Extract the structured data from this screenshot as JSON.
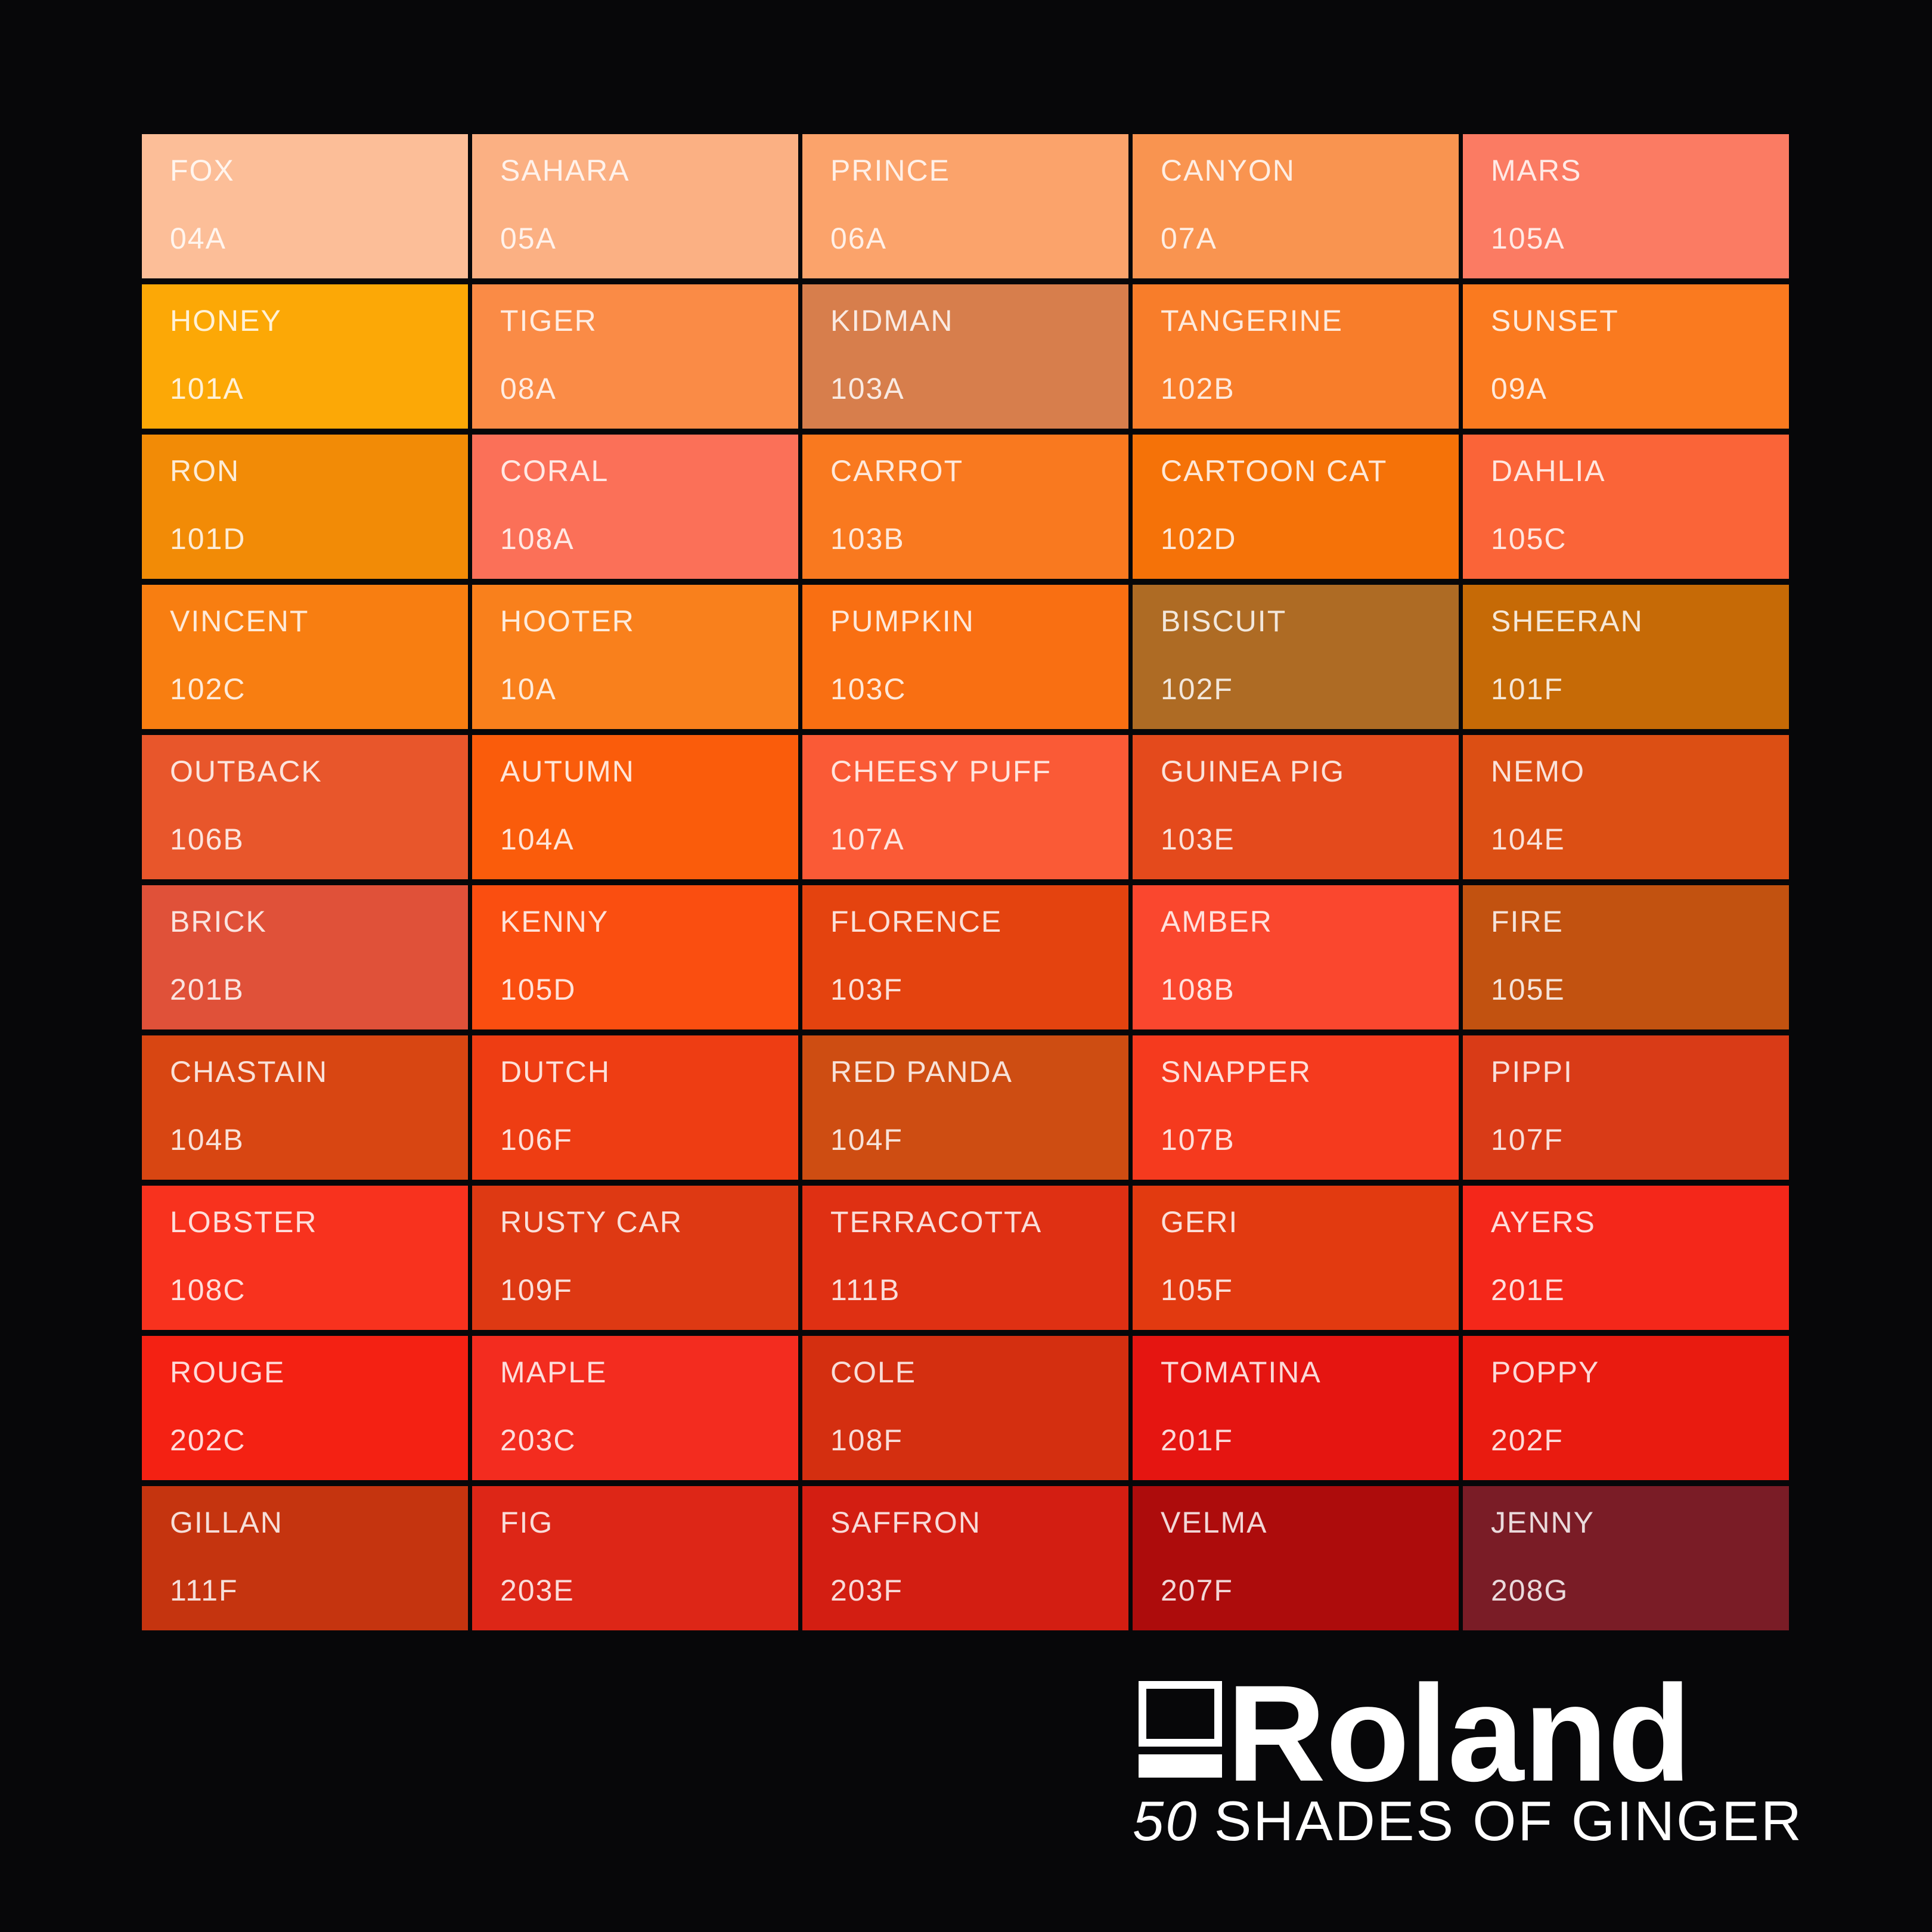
{
  "background": "#070709",
  "text_overlay_color": "rgba(255,255,255,0.84)",
  "footer": {
    "brand": "Roland",
    "tagline_number": "50",
    "tagline_text": "SHADES OF GINGER"
  },
  "chart_data": {
    "type": "table",
    "title": "50 SHADES OF GINGER",
    "description": "Color swatch palette grid of 50 orange/ginger shades, 5 columns by 10 rows, each swatch labeled with a name and a color code",
    "columns": 5,
    "rows": 10,
    "swatches": [
      {
        "name": "FOX",
        "code": "04A",
        "color": "#FCBE98"
      },
      {
        "name": "SAHARA",
        "code": "05A",
        "color": "#FBB083"
      },
      {
        "name": "PRINCE",
        "code": "06A",
        "color": "#FBA36B"
      },
      {
        "name": "CANYON",
        "code": "07A",
        "color": "#F99450"
      },
      {
        "name": "MARS",
        "code": "105A",
        "color": "#FB7B63"
      },
      {
        "name": "HONEY",
        "code": "101A",
        "color": "#FCA806"
      },
      {
        "name": "TIGER",
        "code": "08A",
        "color": "#FA8B46"
      },
      {
        "name": "KIDMAN",
        "code": "103A",
        "color": "#D77E4C"
      },
      {
        "name": "TANGERINE",
        "code": "102B",
        "color": "#F87D2A"
      },
      {
        "name": "SUNSET",
        "code": "09A",
        "color": "#FA7A1F"
      },
      {
        "name": "RON",
        "code": "101D",
        "color": "#F28B06"
      },
      {
        "name": "CORAL",
        "code": "108A",
        "color": "#FB7058"
      },
      {
        "name": "CARROT",
        "code": "103B",
        "color": "#F9791F"
      },
      {
        "name": "CARTOON CAT",
        "code": "102D",
        "color": "#F57208"
      },
      {
        "name": "DAHLIA",
        "code": "105C",
        "color": "#FA6438"
      },
      {
        "name": "VINCENT",
        "code": "102C",
        "color": "#F87E11"
      },
      {
        "name": "HOOTER",
        "code": "10A",
        "color": "#F9801C"
      },
      {
        "name": "PUMPKIN",
        "code": "103C",
        "color": "#F96F12"
      },
      {
        "name": "BISCUIT",
        "code": "102F",
        "color": "#AE6B24"
      },
      {
        "name": "SHEERAN",
        "code": "101F",
        "color": "#C66A06"
      },
      {
        "name": "OUTBACK",
        "code": "106B",
        "color": "#E8562B"
      },
      {
        "name": "AUTUMN",
        "code": "104A",
        "color": "#FA5C0B"
      },
      {
        "name": "CHEESY PUFF",
        "code": "107A",
        "color": "#FA5A36"
      },
      {
        "name": "GUINEA PIG",
        "code": "103E",
        "color": "#E44A1C"
      },
      {
        "name": "NEMO",
        "code": "104E",
        "color": "#DC4F14"
      },
      {
        "name": "BRICK",
        "code": "201B",
        "color": "#E05139"
      },
      {
        "name": "KENNY",
        "code": "105D",
        "color": "#FA4E10"
      },
      {
        "name": "FLORENCE",
        "code": "103F",
        "color": "#E4430F"
      },
      {
        "name": "AMBER",
        "code": "108B",
        "color": "#FA472E"
      },
      {
        "name": "FIRE",
        "code": "105E",
        "color": "#C25210"
      },
      {
        "name": "CHASTAIN",
        "code": "104B",
        "color": "#D84612"
      },
      {
        "name": "DUTCH",
        "code": "106F",
        "color": "#EE3D13"
      },
      {
        "name": "RED PANDA",
        "code": "104F",
        "color": "#CE4D12"
      },
      {
        "name": "SNAPPER",
        "code": "107B",
        "color": "#F53A1E"
      },
      {
        "name": "PIPPI",
        "code": "107F",
        "color": "#D93B17"
      },
      {
        "name": "LOBSTER",
        "code": "108C",
        "color": "#F8321E"
      },
      {
        "name": "RUSTY CAR",
        "code": "109F",
        "color": "#DE3913"
      },
      {
        "name": "TERRACOTTA",
        "code": "111B",
        "color": "#DF3013"
      },
      {
        "name": "GERI",
        "code": "105F",
        "color": "#E23A10"
      },
      {
        "name": "AYERS",
        "code": "201E",
        "color": "#F4271A"
      },
      {
        "name": "ROUGE",
        "code": "202C",
        "color": "#F42113"
      },
      {
        "name": "MAPLE",
        "code": "203C",
        "color": "#F32C1F"
      },
      {
        "name": "COLE",
        "code": "108F",
        "color": "#D42F10"
      },
      {
        "name": "TOMATINA",
        "code": "201F",
        "color": "#E51511"
      },
      {
        "name": "POPPY",
        "code": "202F",
        "color": "#E91B10"
      },
      {
        "name": "GILLAN",
        "code": "111F",
        "color": "#C5340F"
      },
      {
        "name": "FIG",
        "code": "203E",
        "color": "#DD2617"
      },
      {
        "name": "SAFFRON",
        "code": "203F",
        "color": "#D31E12"
      },
      {
        "name": "VELMA",
        "code": "207F",
        "color": "#AD0C0C"
      },
      {
        "name": "JENNY",
        "code": "208G",
        "color": "#7A1C26"
      }
    ]
  }
}
